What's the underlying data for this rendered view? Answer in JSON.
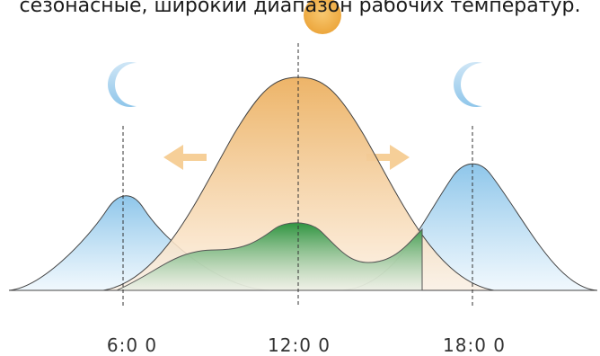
{
  "caption": "сезонасные, широкий диапазон рабочих температур.",
  "times": [
    "6:0 0",
    "12:0 0",
    "18:0 0"
  ],
  "colors": {
    "sun": "#f2b14a",
    "moon": "#a9d3ee",
    "warm_curve": "#e9b467",
    "cool_curve": "#8fc6ea",
    "green_curve": "#3a9a4a",
    "arrow": "#f6cf98",
    "line": "#333333"
  },
  "icons": [
    "sun-icon",
    "moon-icon",
    "arrow-left-icon",
    "arrow-right-icon"
  ]
}
